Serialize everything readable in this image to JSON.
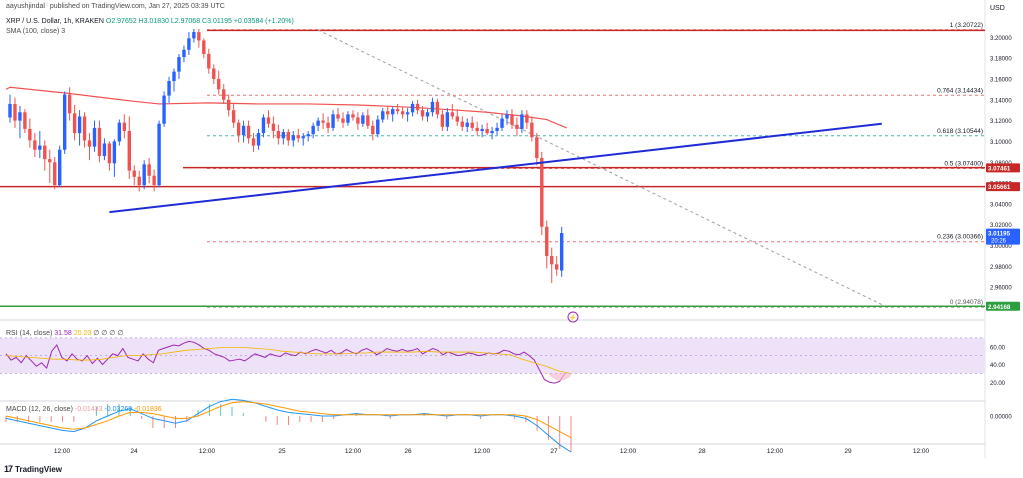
{
  "header": {
    "author": "aayushjindal",
    "published": "published on TradingView.com, Jan 27, 2025 03:39 UTC",
    "symbol": "XRP / U.S. Dollar, 1h, KRAKEN",
    "open": "O2.97652",
    "high": "H3.01830",
    "low": "L2.97068",
    "close": "C3.01195",
    "change": "+0.03584 (+1.20%)",
    "sma_label": "SMA (100, close)",
    "sma_extra": "3",
    "currency": "USD"
  },
  "indicators": {
    "rsi_label": "RSI (14, close)",
    "rsi_value": "31.58",
    "rsi_extra": "20.20",
    "rsi_symbols": "∅ ∅ ∅ ∅",
    "macd_label": "MACD (12, 26, close)",
    "macd_hist": "-0.01433",
    "macd_line": "-0.03269",
    "macd_signal": "-0.01836"
  },
  "footer": {
    "brand": "TradingView",
    "logo": "17"
  },
  "colors": {
    "up": "#2962ff",
    "down": "#ef5350",
    "sma": "#ef5350",
    "trendline": "#1f2bd6",
    "resistance": "#c62828",
    "support": "#2e9e3f",
    "fib_red": "#e57373",
    "fib_green": "#4db6ac",
    "rsi": "#9c27b0",
    "rsi_ma": "#f4b400",
    "macd_line": "#2196f3",
    "macd_signal": "#ff9800"
  },
  "chart_data": {
    "type": "candlestick",
    "symbol": "XRP / U.S. Dollar",
    "timeframe": "1h",
    "x_tick_labels": [
      "12:00",
      "24",
      "12:00",
      "25",
      "12:00",
      "26",
      "12:00",
      "27",
      "12:00",
      "28",
      "12:00",
      "29",
      "12:00"
    ],
    "y_tick_labels": [
      "3.20000",
      "3.18000",
      "3.16000",
      "3.14000",
      "3.12000",
      "3.10000",
      "3.08000",
      "3.06000",
      "3.04000",
      "3.02000",
      "3.00000",
      "2.98000",
      "2.96000"
    ],
    "ylim": [
      2.935,
      3.215
    ],
    "price_tags": [
      {
        "label": "3.07461",
        "value": 3.07461,
        "color": "#c62828"
      },
      {
        "label": "3.05661",
        "value": 3.05661,
        "color": "#c62828"
      },
      {
        "label": "3.01195",
        "value": 3.01195,
        "color": "#2962ff",
        "sub": "20:26"
      },
      {
        "label": "2.94168",
        "value": 2.94168,
        "color": "#2e9e3f"
      }
    ],
    "fibonacci": [
      {
        "label": "1 (3.20722)",
        "value": 3.20722,
        "color": "#e57373"
      },
      {
        "label": "0.764 (3.14434)",
        "value": 3.14434,
        "color": "#e57373"
      },
      {
        "label": "0.618 (3.10544)",
        "value": 3.10544,
        "color": "#4db6ac"
      },
      {
        "label": "0.5 (3.07400)",
        "value": 3.074,
        "color": "#e57373"
      },
      {
        "label": "0.236 (3.00366)",
        "value": 3.00366,
        "color": "#e57373"
      },
      {
        "label": "0 (2.94078)",
        "value": 2.94078,
        "color": "#9e9e9e"
      }
    ],
    "horizontal_lines": [
      {
        "name": "resistance-top",
        "value": 3.2066,
        "color": "#c62828"
      },
      {
        "name": "resistance-mid",
        "value": 3.0748,
        "color": "#c62828"
      },
      {
        "name": "resistance-low",
        "value": 3.0566,
        "color": "#c62828"
      },
      {
        "name": "support",
        "value": 2.9417,
        "color": "#2e9e3f"
      }
    ],
    "trendline": {
      "from": {
        "x": 18,
        "y": 3.035
      },
      "to": {
        "x": 174,
        "y": 3.117
      }
    },
    "diagonal_dashed": {
      "from": {
        "x": 62,
        "y": 3.207
      },
      "to": {
        "x": 177,
        "y": 2.942
      }
    },
    "candles": [
      [
        0,
        3.123,
        3.145,
        3.118,
        3.136
      ],
      [
        1,
        3.136,
        3.142,
        3.113,
        3.12
      ],
      [
        2,
        3.12,
        3.134,
        3.103,
        3.128
      ],
      [
        3,
        3.128,
        3.131,
        3.108,
        3.112
      ],
      [
        4,
        3.112,
        3.122,
        3.094,
        3.101
      ],
      [
        5,
        3.101,
        3.108,
        3.085,
        3.092
      ],
      [
        6,
        3.092,
        3.11,
        3.084,
        3.096
      ],
      [
        7,
        3.096,
        3.101,
        3.072,
        3.083
      ],
      [
        8,
        3.083,
        3.092,
        3.06,
        3.08
      ],
      [
        9,
        3.08,
        3.085,
        3.054,
        3.058
      ],
      [
        10,
        3.058,
        3.096,
        3.056,
        3.092
      ],
      [
        11,
        3.092,
        3.148,
        3.088,
        3.145
      ],
      [
        12,
        3.145,
        3.152,
        3.12,
        3.127
      ],
      [
        13,
        3.127,
        3.135,
        3.101,
        3.108
      ],
      [
        14,
        3.108,
        3.13,
        3.096,
        3.124
      ],
      [
        15,
        3.124,
        3.128,
        3.094,
        3.101
      ],
      [
        16,
        3.101,
        3.108,
        3.082,
        3.095
      ],
      [
        17,
        3.095,
        3.12,
        3.09,
        3.113
      ],
      [
        18,
        3.113,
        3.12,
        3.08,
        3.086
      ],
      [
        19,
        3.086,
        3.103,
        3.082,
        3.098
      ],
      [
        20,
        3.098,
        3.1,
        3.072,
        3.079
      ],
      [
        21,
        3.079,
        3.102,
        3.066,
        3.1
      ],
      [
        22,
        3.1,
        3.121,
        3.096,
        3.118
      ],
      [
        23,
        3.118,
        3.126,
        3.103,
        3.11
      ],
      [
        24,
        3.11,
        3.124,
        3.064,
        3.072
      ],
      [
        25,
        3.072,
        3.077,
        3.058,
        3.066
      ],
      [
        26,
        3.066,
        3.072,
        3.052,
        3.058
      ],
      [
        27,
        3.058,
        3.082,
        3.054,
        3.078
      ],
      [
        28,
        3.078,
        3.084,
        3.06,
        3.067
      ],
      [
        29,
        3.067,
        3.073,
        3.052,
        3.058
      ],
      [
        30,
        3.058,
        3.12,
        3.056,
        3.117
      ],
      [
        31,
        3.117,
        3.148,
        3.114,
        3.144
      ],
      [
        32,
        3.144,
        3.162,
        3.137,
        3.158
      ],
      [
        33,
        3.158,
        3.17,
        3.148,
        3.167
      ],
      [
        34,
        3.167,
        3.184,
        3.16,
        3.181
      ],
      [
        35,
        3.181,
        3.192,
        3.176,
        3.188
      ],
      [
        36,
        3.188,
        3.205,
        3.183,
        3.199
      ],
      [
        37,
        3.199,
        3.208,
        3.195,
        3.205
      ],
      [
        38,
        3.205,
        3.208,
        3.19,
        3.197
      ],
      [
        39,
        3.197,
        3.199,
        3.18,
        3.184
      ],
      [
        40,
        3.184,
        3.189,
        3.165,
        3.17
      ],
      [
        41,
        3.17,
        3.174,
        3.155,
        3.16
      ],
      [
        42,
        3.16,
        3.168,
        3.145,
        3.15
      ],
      [
        43,
        3.15,
        3.155,
        3.136,
        3.14
      ],
      [
        44,
        3.14,
        3.145,
        3.124,
        3.13
      ],
      [
        45,
        3.13,
        3.136,
        3.113,
        3.118
      ],
      [
        46,
        3.118,
        3.121,
        3.099,
        3.106
      ],
      [
        47,
        3.106,
        3.12,
        3.099,
        3.115
      ],
      [
        48,
        3.115,
        3.12,
        3.098,
        3.103
      ],
      [
        49,
        3.103,
        3.108,
        3.09,
        3.096
      ],
      [
        50,
        3.096,
        3.112,
        3.092,
        3.108
      ],
      [
        51,
        3.108,
        3.126,
        3.104,
        3.123
      ],
      [
        52,
        3.123,
        3.13,
        3.113,
        3.117
      ],
      [
        53,
        3.117,
        3.124,
        3.103,
        3.11
      ],
      [
        54,
        3.11,
        3.116,
        3.097,
        3.103
      ],
      [
        55,
        3.103,
        3.112,
        3.097,
        3.109
      ],
      [
        56,
        3.109,
        3.112,
        3.096,
        3.101
      ],
      [
        57,
        3.101,
        3.11,
        3.095,
        3.106
      ],
      [
        58,
        3.106,
        3.112,
        3.099,
        3.103
      ],
      [
        59,
        3.103,
        3.108,
        3.096,
        3.105
      ],
      [
        60,
        3.105,
        3.11,
        3.1,
        3.107
      ],
      [
        61,
        3.107,
        3.118,
        3.103,
        3.115
      ],
      [
        62,
        3.115,
        3.123,
        3.11,
        3.12
      ],
      [
        63,
        3.12,
        3.127,
        3.112,
        3.118
      ],
      [
        64,
        3.118,
        3.124,
        3.108,
        3.113
      ],
      [
        65,
        3.113,
        3.13,
        3.11,
        3.126
      ],
      [
        66,
        3.126,
        3.132,
        3.119,
        3.122
      ],
      [
        67,
        3.122,
        3.128,
        3.113,
        3.118
      ],
      [
        68,
        3.118,
        3.129,
        3.115,
        3.126
      ],
      [
        69,
        3.126,
        3.13,
        3.12,
        3.123
      ],
      [
        70,
        3.123,
        3.128,
        3.111,
        3.117
      ],
      [
        71,
        3.117,
        3.128,
        3.114,
        3.125
      ],
      [
        72,
        3.125,
        3.131,
        3.112,
        3.115
      ],
      [
        73,
        3.115,
        3.12,
        3.101,
        3.107
      ],
      [
        74,
        3.107,
        3.125,
        3.104,
        3.121
      ],
      [
        75,
        3.121,
        3.132,
        3.118,
        3.129
      ],
      [
        76,
        3.129,
        3.134,
        3.121,
        3.126
      ],
      [
        77,
        3.126,
        3.133,
        3.119,
        3.131
      ],
      [
        78,
        3.131,
        3.136,
        3.126,
        3.129
      ],
      [
        79,
        3.129,
        3.133,
        3.122,
        3.126
      ],
      [
        80,
        3.126,
        3.132,
        3.119,
        3.128
      ],
      [
        81,
        3.128,
        3.139,
        3.124,
        3.136
      ],
      [
        82,
        3.136,
        3.14,
        3.126,
        3.13
      ],
      [
        83,
        3.13,
        3.134,
        3.12,
        3.124
      ],
      [
        84,
        3.124,
        3.131,
        3.119,
        3.128
      ],
      [
        85,
        3.128,
        3.142,
        3.124,
        3.138
      ],
      [
        86,
        3.138,
        3.141,
        3.122,
        3.126
      ],
      [
        87,
        3.126,
        3.13,
        3.11,
        3.114
      ],
      [
        88,
        3.114,
        3.132,
        3.11,
        3.128
      ],
      [
        89,
        3.128,
        3.136,
        3.121,
        3.124
      ],
      [
        90,
        3.124,
        3.131,
        3.115,
        3.119
      ],
      [
        91,
        3.119,
        3.124,
        3.11,
        3.114
      ],
      [
        92,
        3.114,
        3.122,
        3.109,
        3.118
      ],
      [
        93,
        3.118,
        3.124,
        3.11,
        3.113
      ],
      [
        94,
        3.113,
        3.119,
        3.106,
        3.11
      ],
      [
        95,
        3.11,
        3.116,
        3.104,
        3.112
      ],
      [
        96,
        3.112,
        3.118,
        3.106,
        3.108
      ],
      [
        97,
        3.108,
        3.114,
        3.102,
        3.11
      ],
      [
        98,
        3.11,
        3.118,
        3.106,
        3.113
      ],
      [
        99,
        3.113,
        3.126,
        3.11,
        3.122
      ],
      [
        100,
        3.122,
        3.13,
        3.116,
        3.126
      ],
      [
        101,
        3.126,
        3.131,
        3.112,
        3.116
      ],
      [
        102,
        3.116,
        3.123,
        3.105,
        3.112
      ],
      [
        103,
        3.112,
        3.13,
        3.108,
        3.126
      ],
      [
        104,
        3.126,
        3.13,
        3.112,
        3.118
      ],
      [
        105,
        3.118,
        3.124,
        3.1,
        3.104
      ],
      [
        106,
        3.104,
        3.108,
        3.077,
        3.084
      ],
      [
        107,
        3.084,
        3.09,
        3.01,
        3.018
      ],
      [
        108,
        3.018,
        3.024,
        2.978,
        2.99
      ],
      [
        109,
        2.99,
        2.998,
        2.964,
        2.982
      ],
      [
        110,
        2.982,
        2.99,
        2.971,
        2.977
      ],
      [
        111,
        2.976,
        3.018,
        2.97,
        3.012
      ]
    ],
    "sma100": [
      [
        0,
        3.152
      ],
      [
        12,
        3.146
      ],
      [
        24,
        3.139
      ],
      [
        30,
        3.136
      ],
      [
        40,
        3.137
      ],
      [
        50,
        3.136
      ],
      [
        60,
        3.136
      ],
      [
        70,
        3.135
      ],
      [
        80,
        3.133
      ],
      [
        90,
        3.13
      ],
      [
        96,
        3.128
      ],
      [
        102,
        3.125
      ],
      [
        108,
        3.121
      ],
      [
        112,
        3.113
      ]
    ],
    "rsi": {
      "ylim": [
        0,
        80
      ],
      "y_tick_labels": [
        "60.00",
        "40.00",
        "20.00"
      ],
      "y_ticks": [
        60,
        40,
        20
      ],
      "band": [
        30,
        70
      ],
      "values": [
        52,
        45,
        48,
        42,
        50,
        44,
        38,
        42,
        36,
        55,
        62,
        48,
        44,
        52,
        46,
        44,
        50,
        41,
        47,
        40,
        46,
        52,
        50,
        58,
        48,
        46,
        44,
        52,
        46,
        42,
        56,
        58,
        60,
        62,
        61,
        64,
        66,
        65,
        62,
        58,
        56,
        52,
        50,
        48,
        44,
        45,
        46,
        44,
        48,
        52,
        50,
        48,
        52,
        50,
        49,
        53,
        51,
        50,
        54,
        52,
        55,
        57,
        55,
        53,
        56,
        52,
        53,
        57,
        54,
        52,
        56,
        58,
        55,
        51,
        54,
        58,
        56,
        55,
        57,
        55,
        56,
        58,
        52,
        55,
        58,
        56,
        51,
        54,
        52,
        50,
        51,
        53,
        52,
        50,
        51,
        53,
        52,
        53,
        56,
        55,
        52,
        51,
        54,
        50,
        45,
        34,
        23,
        20,
        19,
        21,
        30
      ],
      "ma": [
        50,
        49,
        48,
        47,
        46,
        46,
        45,
        45,
        46,
        48,
        50,
        50,
        51,
        52,
        54,
        56,
        57,
        58,
        59,
        59,
        59,
        58,
        57,
        55,
        54,
        53,
        52,
        52,
        52,
        53,
        53,
        54,
        54,
        54,
        54,
        55,
        54,
        54,
        54,
        54,
        53,
        52,
        51,
        46,
        42,
        38,
        33,
        30
      ]
    },
    "macd": {
      "ylim": [
        -0.03,
        0.015
      ],
      "y_tick_labels": [
        "0.00000"
      ],
      "y_ticks": [
        0
      ],
      "line": [
        -0.002,
        -0.004,
        -0.006,
        -0.008,
        -0.01,
        -0.012,
        -0.013,
        -0.01,
        -0.004,
        0.0,
        0.004,
        0.006,
        0.002,
        -0.002,
        -0.004,
        -0.006,
        -0.004,
        0.002,
        0.008,
        0.012,
        0.014,
        0.013,
        0.011,
        0.008,
        0.005,
        0.003,
        0.002,
        0.001,
        0.0,
        0.0,
        0.001,
        0.002,
        0.001,
        0.001,
        0.0,
        0.001,
        0.001,
        0.002,
        0.001,
        0.0,
        0.001,
        0.001,
        0.0,
        0.001,
        0.001,
        0.0,
        -0.002,
        -0.008,
        -0.016,
        -0.024,
        -0.03
      ],
      "signal": [
        0.0,
        -0.002,
        -0.004,
        -0.006,
        -0.008,
        -0.01,
        -0.011,
        -0.01,
        -0.007,
        -0.004,
        0.0,
        0.003,
        0.003,
        0.002,
        0.0,
        -0.002,
        -0.002,
        0.0,
        0.004,
        0.008,
        0.011,
        0.012,
        0.011,
        0.01,
        0.008,
        0.006,
        0.004,
        0.003,
        0.002,
        0.001,
        0.001,
        0.001,
        0.001,
        0.001,
        0.001,
        0.001,
        0.001,
        0.001,
        0.001,
        0.001,
        0.001,
        0.001,
        0.001,
        0.001,
        0.001,
        0.001,
        0.0,
        -0.003,
        -0.008,
        -0.013,
        -0.018
      ]
    }
  }
}
